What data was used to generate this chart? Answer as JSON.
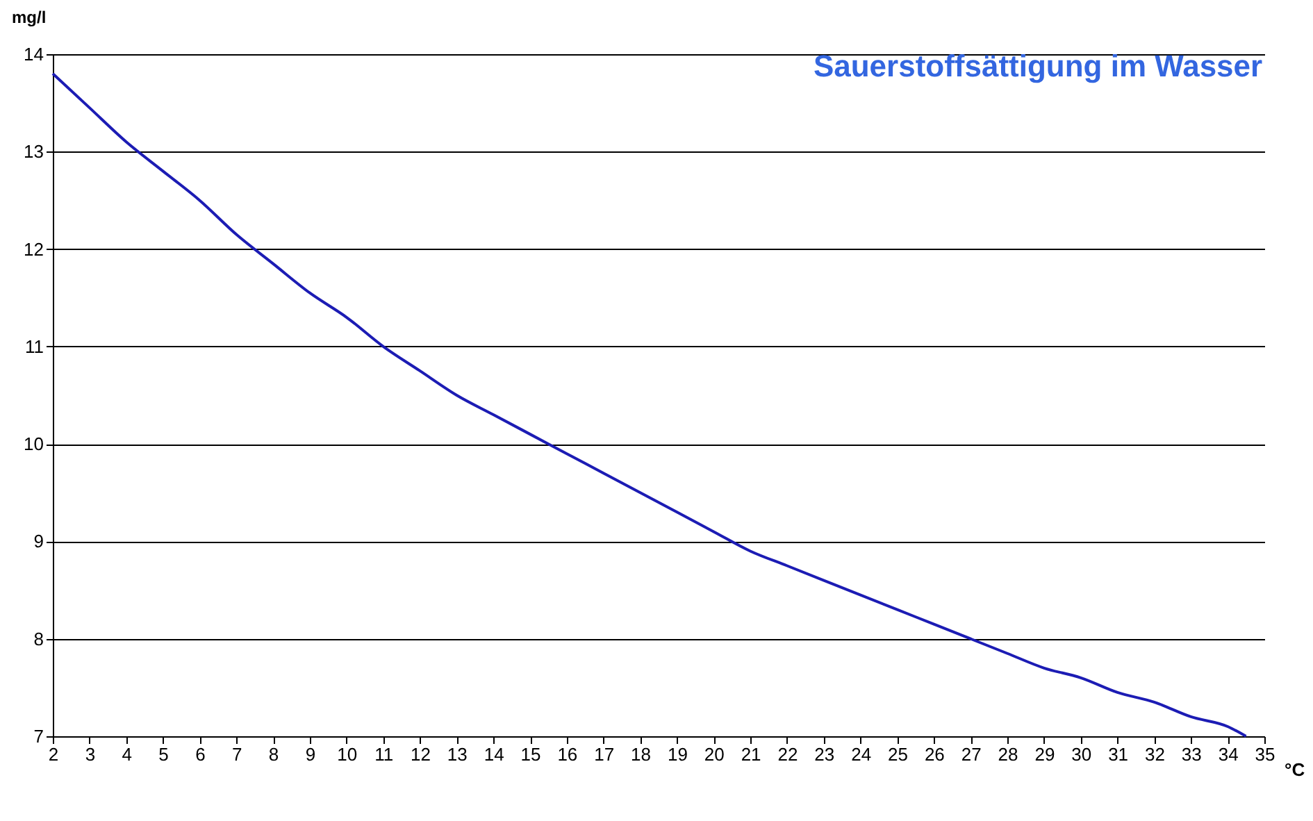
{
  "chart_data": {
    "type": "line",
    "title": "Sauerstoffsättigung im Wasser",
    "xlabel": "°C",
    "ylabel": "mg/l",
    "x": [
      2,
      3,
      4,
      5,
      6,
      7,
      8,
      9,
      10,
      11,
      12,
      13,
      14,
      15,
      16,
      17,
      18,
      19,
      20,
      21,
      22,
      23,
      24,
      25,
      26,
      27,
      28,
      29,
      30,
      31,
      32,
      33,
      34,
      34.5
    ],
    "series": [
      {
        "color": "#1c1cb4",
        "values": [
          13.8,
          13.45,
          13.1,
          12.8,
          12.5,
          12.15,
          11.85,
          11.55,
          11.3,
          11.0,
          10.75,
          10.5,
          10.3,
          10.1,
          9.9,
          9.7,
          9.5,
          9.3,
          9.1,
          8.9,
          8.75,
          8.6,
          8.45,
          8.3,
          8.15,
          8.0,
          7.85,
          7.7,
          7.6,
          7.45,
          7.35,
          7.2,
          7.1,
          7.0
        ]
      }
    ],
    "xlim": [
      2,
      35
    ],
    "xticks": [
      2,
      3,
      4,
      5,
      6,
      7,
      8,
      9,
      10,
      11,
      12,
      13,
      14,
      15,
      16,
      17,
      18,
      19,
      20,
      21,
      22,
      23,
      24,
      25,
      26,
      27,
      28,
      29,
      30,
      31,
      32,
      33,
      34,
      35
    ],
    "ylim": [
      7,
      14
    ],
    "yticks": [
      7,
      8,
      9,
      10,
      11,
      12,
      13,
      14
    ],
    "grid": "y",
    "marker": "none",
    "line_style": "solid"
  }
}
